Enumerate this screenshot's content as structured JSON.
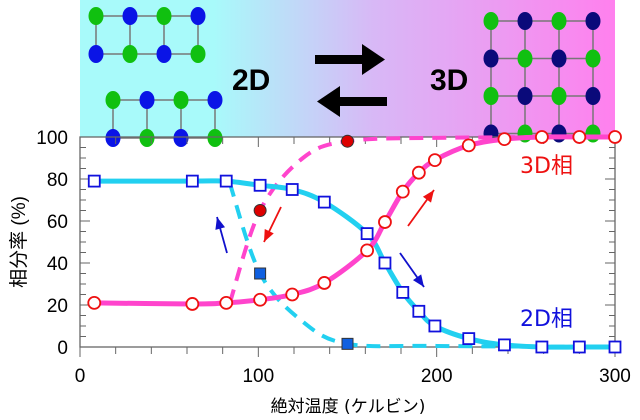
{
  "banner": {
    "left_label": "2D",
    "right_label": "3D",
    "gradient_colors": [
      "#a8fafa",
      "#d8b8f6",
      "#ff80ee"
    ],
    "atom_colors": {
      "green": "#10c010",
      "blue": "#0a14e6",
      "navy": "#0a0a7a"
    }
  },
  "chart_data": {
    "type": "line",
    "xlabel": "絶対温度 (ケルビン)",
    "ylabel": "相分率 (%)",
    "xlim": [
      0,
      300
    ],
    "ylim": [
      0,
      100
    ],
    "xticks": [
      0,
      100,
      200,
      300
    ],
    "yticks": [
      0,
      20,
      40,
      60,
      80,
      100
    ],
    "grid": false,
    "annotations": [
      {
        "text": "3D相",
        "color": "#ee1111"
      },
      {
        "text": "2D相",
        "color": "#1111dd"
      }
    ],
    "series": [
      {
        "name": "2D相",
        "style": "solid",
        "marker": "open-square",
        "line_color": "#22d0f0",
        "marker_color": "#1111dd",
        "x": [
          8,
          63,
          82,
          101,
          119,
          137,
          161,
          171,
          181,
          190,
          199,
          218,
          238,
          259,
          280,
          300
        ],
        "y": [
          79,
          79,
          79,
          77,
          75,
          69,
          54,
          40,
          26,
          17,
          10,
          4,
          1,
          0,
          0,
          0
        ]
      },
      {
        "name": "3D相",
        "style": "solid",
        "marker": "open-circle",
        "line_color": "#ff44cc",
        "marker_color": "#ee1111",
        "x": [
          8,
          63,
          82,
          101,
          119,
          137,
          161,
          171,
          181,
          190,
          199,
          218,
          238,
          259,
          280,
          300
        ],
        "y": [
          21,
          20.5,
          21,
          22.5,
          25,
          30.5,
          46,
          59.5,
          74,
          83,
          89,
          96,
          99,
          100,
          100,
          100
        ]
      },
      {
        "style": "dashed",
        "marker": "filled-square",
        "line_color": "#22d0f0",
        "marker_color": "#1060e0",
        "x": [
          101,
          150
        ],
        "y": [
          35,
          1.5
        ]
      },
      {
        "style": "dashed",
        "marker": "filled-circle",
        "line_color": "#ff44cc",
        "marker_color": "#dd0000",
        "x": [
          101,
          150
        ],
        "y": [
          65,
          98
        ]
      }
    ]
  }
}
